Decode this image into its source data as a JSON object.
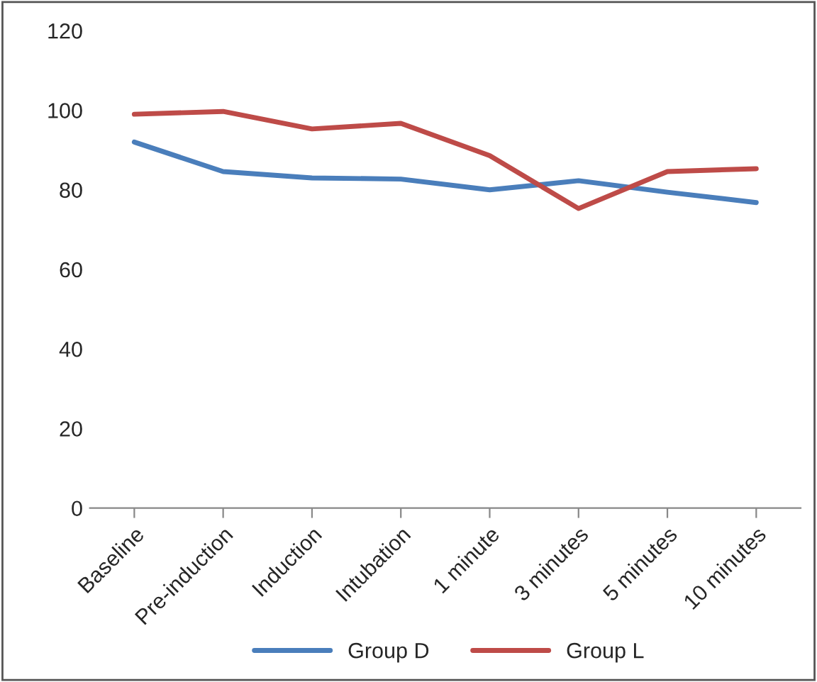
{
  "chart_data": {
    "type": "line",
    "categories": [
      "Baseline",
      "Pre-induction",
      "Induction",
      "Intubation",
      "1 minute",
      "3 minutes",
      "5 minutes",
      "10 minutes"
    ],
    "series": [
      {
        "name": "Group D",
        "color": "#4a7ebb",
        "values": [
          92,
          84.6,
          83,
          82.7,
          80,
          82.3,
          79.4,
          76.8
        ]
      },
      {
        "name": "Group L",
        "color": "#be4b48",
        "values": [
          99,
          99.7,
          95.3,
          96.7,
          88.6,
          75.3,
          84.6,
          85.3
        ]
      }
    ],
    "ylim": [
      0,
      120
    ],
    "yticks": [
      0,
      20,
      40,
      60,
      80,
      100,
      120
    ],
    "grid": false,
    "legend": "bottom",
    "marker": "none"
  }
}
